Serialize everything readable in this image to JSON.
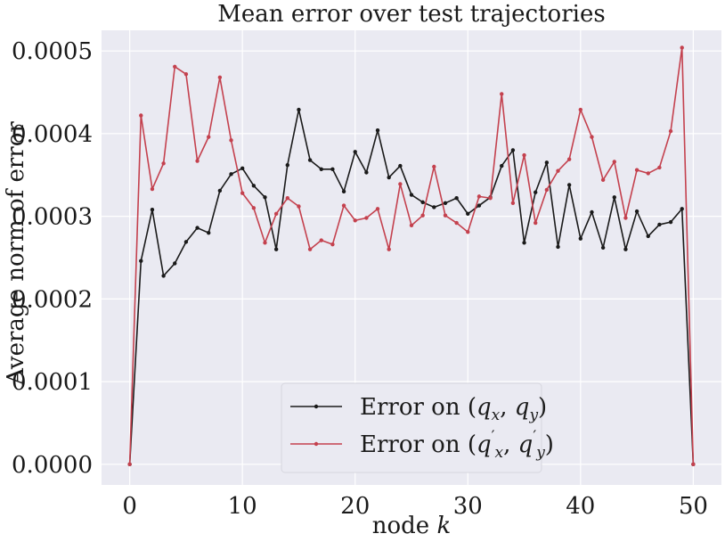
{
  "chart_data": {
    "type": "line",
    "title": "Mean error over test trajectories",
    "xlabel": "node k",
    "ylabel": "Average norm of error",
    "xlim": [
      -2.5,
      52.5
    ],
    "ylim": [
      -2.5e-05,
      0.000525
    ],
    "x_ticks": [
      0,
      10,
      20,
      30,
      40,
      50
    ],
    "y_ticks": [
      0.0,
      0.0001,
      0.0002,
      0.0003,
      0.0004,
      0.0005
    ],
    "x_tick_labels": [
      "0",
      "10",
      "20",
      "30",
      "40",
      "50"
    ],
    "y_tick_labels": [
      "0.0000",
      "0.0001",
      "0.0002",
      "0.0003",
      "0.0004",
      "0.0005"
    ],
    "grid": true,
    "legend_position": "lower-center",
    "x": [
      0,
      1,
      2,
      3,
      4,
      5,
      6,
      7,
      8,
      9,
      10,
      11,
      12,
      13,
      14,
      15,
      16,
      17,
      18,
      19,
      20,
      21,
      22,
      23,
      24,
      25,
      26,
      27,
      28,
      29,
      30,
      31,
      32,
      33,
      34,
      35,
      36,
      37,
      38,
      39,
      40,
      41,
      42,
      43,
      44,
      45,
      46,
      47,
      48,
      49,
      50
    ],
    "series": [
      {
        "name": "Error on (q_x, q_y)",
        "color": "#1a1a1a",
        "values": [
          0.0,
          0.000246,
          0.000308,
          0.000228,
          0.000243,
          0.000269,
          0.000286,
          0.00028,
          0.000331,
          0.000351,
          0.000358,
          0.000337,
          0.000323,
          0.00026,
          0.000362,
          0.000429,
          0.000368,
          0.000357,
          0.000357,
          0.00033,
          0.000378,
          0.000353,
          0.000404,
          0.000347,
          0.000361,
          0.000326,
          0.000317,
          0.000311,
          0.000316,
          0.000322,
          0.000303,
          0.000313,
          0.000323,
          0.000361,
          0.00038,
          0.000268,
          0.000329,
          0.000365,
          0.000263,
          0.000338,
          0.000273,
          0.000305,
          0.000262,
          0.000323,
          0.00026,
          0.000306,
          0.000276,
          0.00029,
          0.000293,
          0.000309,
          0.0
        ]
      },
      {
        "name": "Error on (q'_x, q'_y)",
        "color": "#c4414e",
        "values": [
          0.0,
          0.000422,
          0.000333,
          0.000364,
          0.000481,
          0.000472,
          0.000367,
          0.000396,
          0.000468,
          0.000392,
          0.000328,
          0.00031,
          0.000268,
          0.000303,
          0.000322,
          0.000312,
          0.00026,
          0.000271,
          0.000266,
          0.000313,
          0.000295,
          0.000298,
          0.000309,
          0.00026,
          0.000339,
          0.000289,
          0.000301,
          0.00036,
          0.000301,
          0.000292,
          0.000281,
          0.000324,
          0.000322,
          0.000448,
          0.000316,
          0.000374,
          0.000292,
          0.000332,
          0.000355,
          0.000369,
          0.000429,
          0.000396,
          0.000344,
          0.000366,
          0.000298,
          0.000356,
          0.000352,
          0.000359,
          0.000403,
          0.000504,
          0.0
        ]
      }
    ]
  }
}
